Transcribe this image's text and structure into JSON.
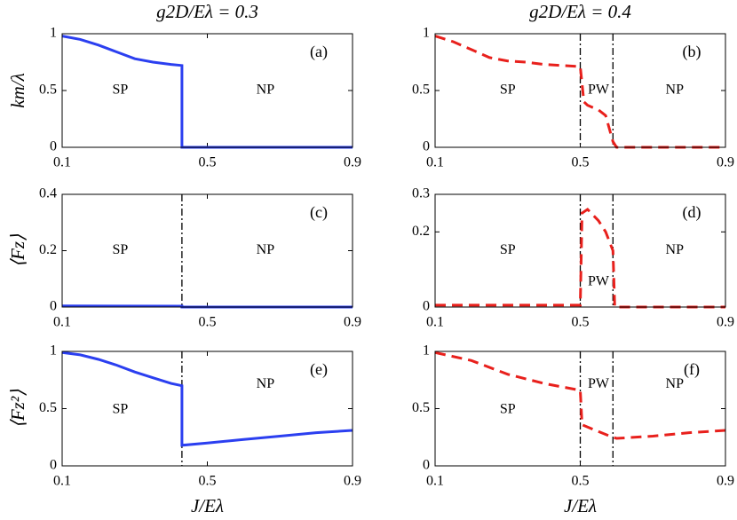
{
  "chart_data": [
    {
      "type": "line",
      "title": "g2D/Eλ = 0.3",
      "ylabel": "km/λ",
      "panel_label": "(a)",
      "xlim": [
        0.1,
        0.9
      ],
      "xticks": [
        0.1,
        0.5,
        0.9
      ],
      "ylim": [
        0,
        1
      ],
      "yticks": [
        0,
        0.5,
        1
      ],
      "vlines": [],
      "annotations": [
        "SP",
        "NP"
      ],
      "series": [
        {
          "color": "#2b3ff0",
          "style": "solid",
          "x": [
            0.1,
            0.15,
            0.2,
            0.25,
            0.3,
            0.35,
            0.4,
            0.43,
            0.43,
            0.9
          ],
          "values": [
            0.98,
            0.95,
            0.9,
            0.84,
            0.78,
            0.75,
            0.73,
            0.72,
            0,
            0
          ]
        }
      ]
    },
    {
      "type": "line",
      "title": "g2D/Eλ = 0.4",
      "panel_label": "(b)",
      "xlim": [
        0.1,
        0.9
      ],
      "xticks": [
        0.1,
        0.5,
        0.9
      ],
      "ylim": [
        0,
        1
      ],
      "yticks": [
        0,
        0.5,
        1
      ],
      "vlines": [
        0.5,
        0.59
      ],
      "annotations": [
        "SP",
        "PW",
        "NP"
      ],
      "series": [
        {
          "color": "#e8201c",
          "style": "dashed",
          "x": [
            0.1,
            0.15,
            0.2,
            0.25,
            0.3,
            0.35,
            0.4,
            0.45,
            0.5,
            0.51,
            0.52,
            0.55,
            0.57,
            0.59,
            0.6,
            0.9
          ],
          "values": [
            0.98,
            0.93,
            0.86,
            0.79,
            0.76,
            0.75,
            0.73,
            0.72,
            0.71,
            0.4,
            0.37,
            0.33,
            0.28,
            0.05,
            0,
            0
          ]
        }
      ]
    },
    {
      "type": "line",
      "ylabel": "⟨Fz⟩",
      "panel_label": "(c)",
      "xlim": [
        0.1,
        0.9
      ],
      "xticks": [
        0.1,
        0.5,
        0.9
      ],
      "ylim": [
        0,
        0.4
      ],
      "yticks": [
        0,
        0.2,
        0.4
      ],
      "vlines": [
        0.43
      ],
      "annotations": [
        "SP",
        "NP"
      ],
      "series": [
        {
          "color": "#2b3ff0",
          "style": "solid",
          "x": [
            0.1,
            0.43,
            0.43,
            0.9
          ],
          "values": [
            0.004,
            0.003,
            0,
            0
          ]
        }
      ]
    },
    {
      "type": "line",
      "panel_label": "(d)",
      "xlim": [
        0.1,
        0.9
      ],
      "xticks": [
        0.1,
        0.5,
        0.9
      ],
      "ylim": [
        0,
        0.3
      ],
      "yticks": [
        0,
        0.2,
        0.3
      ],
      "vlines": [
        0.5,
        0.59
      ],
      "annotations": [
        "SP",
        "PW",
        "NP"
      ],
      "series": [
        {
          "color": "#e8201c",
          "style": "dashed",
          "x": [
            0.1,
            0.5,
            0.505,
            0.52,
            0.55,
            0.57,
            0.59,
            0.595,
            0.9
          ],
          "values": [
            0.005,
            0.005,
            0.25,
            0.26,
            0.23,
            0.2,
            0.15,
            0,
            0
          ]
        }
      ]
    },
    {
      "type": "line",
      "ylabel": "⟨Fz²⟩",
      "xlabel": "J/Eλ",
      "panel_label": "(e)",
      "xlim": [
        0.1,
        0.9
      ],
      "xticks": [
        0.1,
        0.5,
        0.9
      ],
      "ylim": [
        0,
        1
      ],
      "yticks": [
        0,
        0.5,
        1
      ],
      "vlines": [
        0.43
      ],
      "annotations": [
        "SP",
        "NP"
      ],
      "series": [
        {
          "color": "#2b3ff0",
          "style": "solid",
          "x": [
            0.1,
            0.15,
            0.2,
            0.25,
            0.3,
            0.35,
            0.4,
            0.43,
            0.43,
            0.5,
            0.6,
            0.7,
            0.8,
            0.9
          ],
          "values": [
            0.99,
            0.97,
            0.93,
            0.88,
            0.82,
            0.77,
            0.72,
            0.7,
            0.18,
            0.2,
            0.23,
            0.26,
            0.29,
            0.31
          ]
        }
      ]
    },
    {
      "type": "line",
      "xlabel": "J/Eλ",
      "panel_label": "(f)",
      "xlim": [
        0.1,
        0.9
      ],
      "xticks": [
        0.1,
        0.5,
        0.9
      ],
      "ylim": [
        0,
        1
      ],
      "yticks": [
        0,
        0.5,
        1
      ],
      "vlines": [
        0.5,
        0.59
      ],
      "annotations": [
        "SP",
        "PW",
        "NP"
      ],
      "series": [
        {
          "color": "#e8201c",
          "style": "dashed",
          "x": [
            0.1,
            0.2,
            0.3,
            0.4,
            0.5,
            0.505,
            0.55,
            0.59,
            0.6,
            0.7,
            0.8,
            0.9
          ],
          "values": [
            0.99,
            0.92,
            0.8,
            0.72,
            0.66,
            0.36,
            0.3,
            0.25,
            0.24,
            0.26,
            0.29,
            0.31
          ]
        }
      ]
    }
  ]
}
